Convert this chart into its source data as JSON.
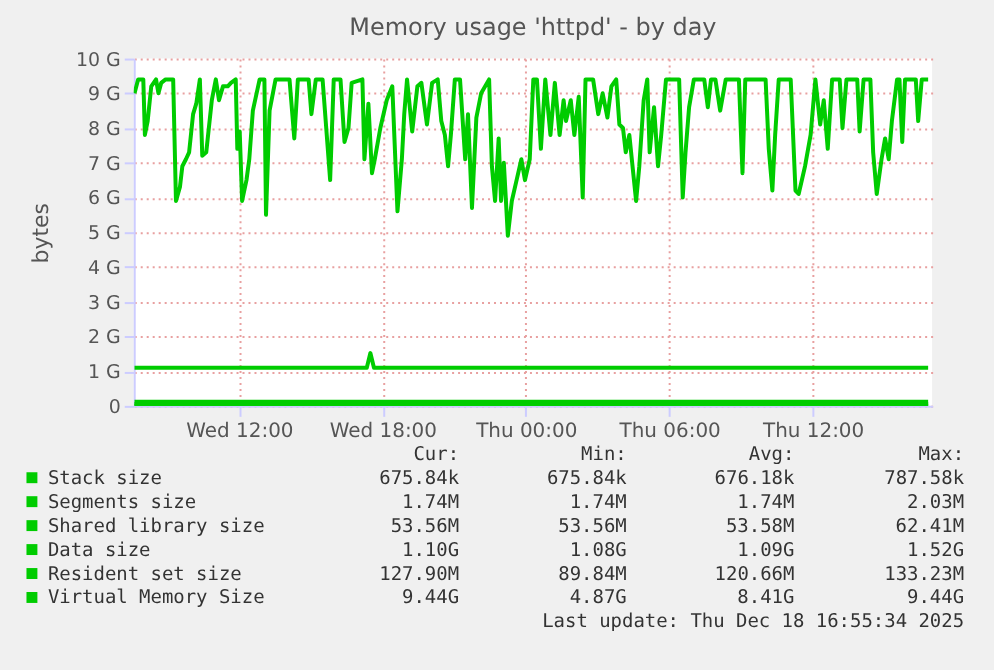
{
  "chart_data": {
    "type": "line",
    "title": "Memory usage 'httpd' - by day",
    "ylabel": "bytes",
    "xlim": [
      "2025-12-17T07:36",
      "2025-12-18T17:00"
    ],
    "xticks": [
      {
        "value": "2025-12-17T12:00",
        "label": "Wed 12:00"
      },
      {
        "value": "2025-12-17T18:00",
        "label": "Wed 18:00"
      },
      {
        "value": "2025-12-18T00:00",
        "label": "Thu 00:00"
      },
      {
        "value": "2025-12-18T06:00",
        "label": "Thu 06:00"
      },
      {
        "value": "2025-12-18T12:00",
        "label": "Thu 12:00"
      }
    ],
    "ylim": [
      0,
      10
    ],
    "yticks": [
      0,
      {
        "value": 1,
        "label": "1 G"
      },
      {
        "value": 2,
        "label": "2 G"
      },
      {
        "value": 3,
        "label": "3 G"
      },
      {
        "value": 4,
        "label": "4 G"
      },
      {
        "value": 5,
        "label": "5 G"
      },
      {
        "value": 6,
        "label": "6 G"
      },
      {
        "value": 7,
        "label": "7 G"
      },
      {
        "value": 8,
        "label": "8 G"
      },
      {
        "value": 9,
        "label": "9 G"
      },
      {
        "value": 10,
        "label": "10 G"
      }
    ],
    "grid": true,
    "legend": "bottom",
    "series": [
      {
        "name": "Stack size",
        "color": "#00cc00",
        "x": [
          "2025-12-17T07:38",
          "2025-12-18T16:50"
        ],
        "values": [
          0,
          0
        ]
      },
      {
        "name": "Segments size",
        "color": "#00cc00",
        "x": [
          "2025-12-17T07:38",
          "2025-12-18T16:50"
        ],
        "values": [
          0,
          0
        ]
      },
      {
        "name": "Shared library size",
        "color": "#00cc00",
        "x": [
          "2025-12-17T07:38",
          "2025-12-18T16:50"
        ],
        "values": [
          0.05,
          0.05
        ]
      },
      {
        "name": "Data size",
        "color": "#00cc00",
        "x": [
          "2025-12-17T07:38",
          "2025-12-17T17:21",
          "2025-12-17T17:30",
          "2025-12-17T17:39",
          "2025-12-18T16:50"
        ],
        "values": [
          1.1,
          1.1,
          1.52,
          1.1,
          1.1
        ]
      },
      {
        "name": "Resident set size",
        "color": "#00cc00",
        "x": [
          "2025-12-17T07:38",
          "2025-12-18T16:50"
        ],
        "values": [
          0.12,
          0.12
        ]
      },
      {
        "name": "Virtual Memory Size",
        "color": "#00cc00",
        "x": [
          "2025-12-17T07:38",
          "2025-12-17T07:47",
          "2025-12-17T08:00",
          "2025-12-17T08:04",
          "2025-12-17T08:11",
          "2025-12-17T08:20",
          "2025-12-17T08:32",
          "2025-12-17T08:38",
          "2025-12-17T08:45",
          "2025-12-17T08:56",
          "2025-12-17T09:15",
          "2025-12-17T09:22",
          "2025-12-17T09:32",
          "2025-12-17T09:38",
          "2025-12-17T09:47",
          "2025-12-17T09:55",
          "2025-12-17T10:05",
          "2025-12-17T10:13",
          "2025-12-17T10:22",
          "2025-12-17T10:28",
          "2025-12-17T10:38",
          "2025-12-17T10:52",
          "2025-12-17T11:02",
          "2025-12-17T11:10",
          "2025-12-17T11:20",
          "2025-12-17T11:32",
          "2025-12-17T11:40",
          "2025-12-17T11:52",
          "2025-12-17T11:56",
          "2025-12-17T12:02",
          "2025-12-17T12:08",
          "2025-12-17T12:19",
          "2025-12-17T12:26",
          "2025-12-17T12:35",
          "2025-12-17T12:52",
          "2025-12-17T13:04",
          "2025-12-17T13:08",
          "2025-12-17T13:17",
          "2025-12-17T13:32",
          "2025-12-17T14:07",
          "2025-12-17T14:19",
          "2025-12-17T14:28",
          "2025-12-17T14:55",
          "2025-12-17T15:02",
          "2025-12-17T15:13",
          "2025-12-17T15:30",
          "2025-12-17T15:49",
          "2025-12-17T15:58",
          "2025-12-17T16:15",
          "2025-12-17T16:25",
          "2025-12-17T16:35",
          "2025-12-17T16:43",
          "2025-12-17T17:10",
          "2025-12-17T17:15",
          "2025-12-17T17:25",
          "2025-12-17T17:34",
          "2025-12-17T17:41",
          "2025-12-17T17:55",
          "2025-12-17T18:11",
          "2025-12-17T18:25",
          "2025-12-17T18:38",
          "2025-12-17T18:49",
          "2025-12-17T18:55",
          "2025-12-17T19:02",
          "2025-12-17T19:15",
          "2025-12-17T19:28",
          "2025-12-17T19:38",
          "2025-12-17T19:52",
          "2025-12-17T20:05",
          "2025-12-17T20:19",
          "2025-12-17T20:28",
          "2025-12-17T20:37",
          "2025-12-17T20:45",
          "2025-12-17T20:52",
          "2025-12-17T21:02",
          "2025-12-17T21:15",
          "2025-12-17T21:28",
          "2025-12-17T21:35",
          "2025-12-17T21:45",
          "2025-12-17T21:56",
          "2025-12-17T22:08",
          "2025-12-17T22:28",
          "2025-12-17T22:35",
          "2025-12-17T22:43",
          "2025-12-17T22:52",
          "2025-12-17T22:58",
          "2025-12-17T23:05",
          "2025-12-17T23:15",
          "2025-12-17T23:25",
          "2025-12-17T23:37",
          "2025-12-17T23:49",
          "2025-12-17T23:58",
          "2025-12-18T00:10",
          "2025-12-18T00:19",
          "2025-12-18T00:28",
          "2025-12-18T00:38",
          "2025-12-18T00:49",
          "2025-12-18T01:02",
          "2025-12-18T01:13",
          "2025-12-18T01:25",
          "2025-12-18T01:35",
          "2025-12-18T01:41",
          "2025-12-18T01:53",
          "2025-12-18T02:02",
          "2025-12-18T02:13",
          "2025-12-18T02:23",
          "2025-12-18T02:30",
          "2025-12-18T02:49",
          "2025-12-18T03:02",
          "2025-12-18T03:13",
          "2025-12-18T03:25",
          "2025-12-18T03:35",
          "2025-12-18T03:47",
          "2025-12-18T03:55",
          "2025-12-18T04:04",
          "2025-12-18T04:11",
          "2025-12-18T04:20",
          "2025-12-18T04:28",
          "2025-12-18T04:37",
          "2025-12-18T04:45",
          "2025-12-18T04:56",
          "2025-12-18T05:05",
          "2025-12-18T05:11",
          "2025-12-18T05:22",
          "2025-12-18T05:32",
          "2025-12-18T05:40",
          "2025-12-18T05:52",
          "2025-12-18T06:25",
          "2025-12-18T06:34",
          "2025-12-18T06:41",
          "2025-12-18T06:50",
          "2025-12-18T07:02",
          "2025-12-18T07:28",
          "2025-12-18T07:37",
          "2025-12-18T07:45",
          "2025-12-18T07:56",
          "2025-12-18T08:08",
          "2025-12-18T08:22",
          "2025-12-18T08:55",
          "2025-12-18T09:04",
          "2025-12-18T09:11",
          "2025-12-18T09:45",
          "2025-12-18T10:02",
          "2025-12-18T10:10",
          "2025-12-18T10:19",
          "2025-12-18T10:26",
          "2025-12-18T10:35",
          "2025-12-18T11:05",
          "2025-12-18T11:17",
          "2025-12-18T11:25",
          "2025-12-18T11:41",
          "2025-12-18T11:55",
          "2025-12-18T12:07",
          "2025-12-18T12:19",
          "2025-12-18T12:28",
          "2025-12-18T12:38",
          "2025-12-18T12:49",
          "2025-12-18T13:08",
          "2025-12-18T13:15",
          "2025-12-18T13:25",
          "2025-12-18T13:52",
          "2025-12-18T13:58",
          "2025-12-18T14:08",
          "2025-12-18T14:25",
          "2025-12-18T14:32",
          "2025-12-18T14:41",
          "2025-12-18T14:53",
          "2025-12-18T15:02",
          "2025-12-18T15:11",
          "2025-12-18T15:19",
          "2025-12-18T15:32",
          "2025-12-18T15:38",
          "2025-12-18T15:45",
          "2025-12-18T15:52",
          "2025-12-18T16:19",
          "2025-12-18T16:25",
          "2025-12-18T16:34",
          "2025-12-18T16:50"
        ],
        "values": [
          9.0,
          9.4,
          9.4,
          7.8,
          8.2,
          9.2,
          9.4,
          9.0,
          9.3,
          9.4,
          9.4,
          5.9,
          6.3,
          6.9,
          7.1,
          7.3,
          8.4,
          8.7,
          9.4,
          7.2,
          7.3,
          8.8,
          9.4,
          8.8,
          9.2,
          9.2,
          9.3,
          9.4,
          7.4,
          7.9,
          5.9,
          6.5,
          7.1,
          8.5,
          9.4,
          9.4,
          5.5,
          8.5,
          9.4,
          9.4,
          7.7,
          9.4,
          9.4,
          8.4,
          9.4,
          9.4,
          6.5,
          9.4,
          9.4,
          7.6,
          8.0,
          9.3,
          9.4,
          7.1,
          8.7,
          6.7,
          7.1,
          8.0,
          8.8,
          9.2,
          5.6,
          7.1,
          8.4,
          9.4,
          7.9,
          9.2,
          9.3,
          8.1,
          9.3,
          9.4,
          8.2,
          7.8,
          6.9,
          7.8,
          9.4,
          9.4,
          7.1,
          8.4,
          5.7,
          8.3,
          9.0,
          9.4,
          6.9,
          5.9,
          7.7,
          5.9,
          7.0,
          4.9,
          5.9,
          6.5,
          7.1,
          6.5,
          7.1,
          9.4,
          9.4,
          7.4,
          9.4,
          7.8,
          9.3,
          7.8,
          8.8,
          8.2,
          8.8,
          7.8,
          8.9,
          6.0,
          9.4,
          9.4,
          8.4,
          9.0,
          8.3,
          9.2,
          9.4,
          8.1,
          8.0,
          7.3,
          7.8,
          6.9,
          5.9,
          6.9,
          8.8,
          9.4,
          7.3,
          8.6,
          6.9,
          7.8,
          9.4,
          9.4,
          6.0,
          7.3,
          8.6,
          9.4,
          9.4,
          8.6,
          9.4,
          9.4,
          8.5,
          9.4,
          9.4,
          6.7,
          9.4,
          9.4,
          9.4,
          7.4,
          6.2,
          7.8,
          9.4,
          9.4,
          6.2,
          6.1,
          6.9,
          7.8,
          9.4,
          8.1,
          8.8,
          7.4,
          9.4,
          9.4,
          8.0,
          9.4,
          9.4,
          7.9,
          9.4,
          9.4,
          7.3,
          6.1,
          7.1,
          7.7,
          7.1,
          8.2,
          9.4,
          9.4,
          7.6,
          9.4,
          9.4,
          8.2,
          9.4,
          9.4
        ]
      }
    ],
    "annotations": [
      "Cur:",
      "Min:",
      "Avg:",
      "Max:",
      "675.84k",
      "675.84k",
      "676.18k",
      "787.58k",
      "1.74M",
      "1.74M",
      "1.74M",
      "2.03M",
      "53.56M",
      "53.56M",
      "53.58M",
      "62.41M",
      "1.10G",
      "1.08G",
      "1.09G",
      "1.52G",
      "127.90M",
      "89.84M",
      "120.66M",
      "133.23M",
      "9.44G",
      "4.87G",
      "8.41G",
      "9.44G",
      "Last update: Thu Dec 18 16:55:34 2025"
    ]
  }
}
